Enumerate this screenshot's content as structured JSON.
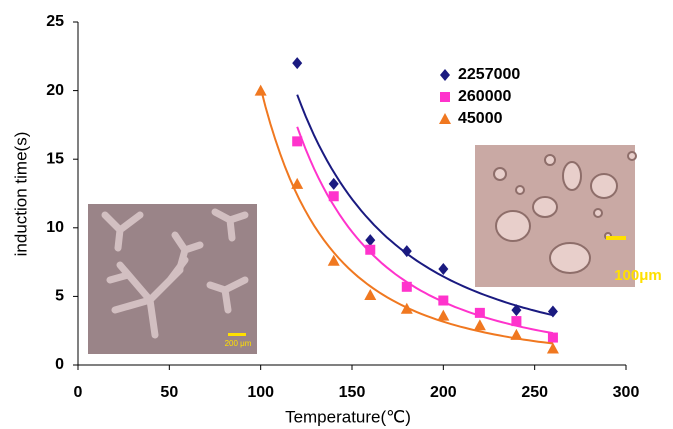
{
  "chart_data": {
    "type": "scatter",
    "x_label": "Temperature(℃)",
    "y_label": "induction  time(s)",
    "xlim": [
      0,
      300
    ],
    "xticks": [
      0,
      50,
      100,
      150,
      200,
      250,
      300
    ],
    "ylim": [
      0,
      25
    ],
    "yticks": [
      0,
      5,
      10,
      15,
      20,
      25
    ],
    "trendline": "power",
    "series": [
      {
        "name": "2257000",
        "color": "#1a1a80",
        "marker": "diamond",
        "x": [
          120,
          140,
          160,
          180,
          200,
          240,
          260
        ],
        "values": [
          22,
          13.2,
          9.1,
          8.3,
          7.0,
          4.0,
          3.9
        ]
      },
      {
        "name": "260000",
        "color": "#ff33cc",
        "marker": "square",
        "x": [
          120,
          140,
          160,
          180,
          200,
          220,
          240,
          260
        ],
        "values": [
          16.3,
          12.3,
          8.4,
          5.7,
          4.7,
          3.8,
          3.2,
          2.0
        ]
      },
      {
        "name": "45000",
        "color": "#f07820",
        "marker": "triangle",
        "x": [
          100,
          120,
          140,
          160,
          180,
          200,
          220,
          240,
          260
        ],
        "values": [
          20,
          13.2,
          7.6,
          5.1,
          4.1,
          3.6,
          2.9,
          2.2,
          1.2
        ]
      }
    ],
    "annotations": [
      "200 μm",
      "100μm"
    ]
  }
}
